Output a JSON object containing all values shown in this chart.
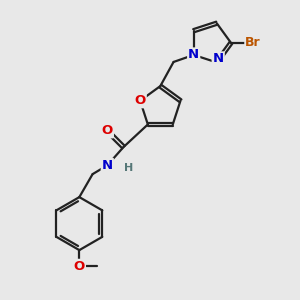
{
  "bg_color": "#e8e8e8",
  "bond_color": "#222222",
  "bond_width": 1.6,
  "atom_colors": {
    "O": "#dd0000",
    "N": "#0000cc",
    "Br": "#bb5500",
    "H": "#557777",
    "C": "#222222"
  },
  "font_size": 9.5,
  "font_size_small": 8.5,
  "font_size_H": 8.0,
  "font_size_Br": 9.0,
  "font_size_methoxy": 8.5
}
